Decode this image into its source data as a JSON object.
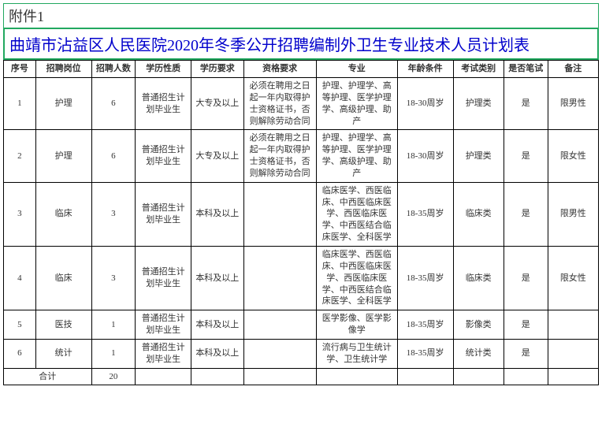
{
  "attachment_label": "附件1",
  "title": "曲靖市沾益区人民医院2020年冬季公开招聘编制外卫生专业技术人员计划表",
  "columns": [
    "序号",
    "招聘岗位",
    "招聘人数",
    "学历性质",
    "学历要求",
    "资格要求",
    "专业",
    "年龄条件",
    "考试类别",
    "是否笔试",
    "备注"
  ],
  "rows": [
    {
      "seq": "1",
      "position": "护理",
      "count": "6",
      "edu_type": "普通招生计划毕业生",
      "edu_req": "大专及以上",
      "qual_req": "必须在聘用之日起一年内取得护士资格证书，否则解除劳动合同",
      "major": "护理、护理学、高等护理、医学护理学、高级护理、助产",
      "age": "18-30周岁",
      "exam_type": "护理类",
      "written": "是",
      "remark": "限男性"
    },
    {
      "seq": "2",
      "position": "护理",
      "count": "6",
      "edu_type": "普通招生计划毕业生",
      "edu_req": "大专及以上",
      "qual_req": "必须在聘用之日起一年内取得护士资格证书，否则解除劳动合同",
      "major": "护理、护理学、高等护理、医学护理学、高级护理、助产",
      "age": "18-30周岁",
      "exam_type": "护理类",
      "written": "是",
      "remark": "限女性"
    },
    {
      "seq": "3",
      "position": "临床",
      "count": "3",
      "edu_type": "普通招生计划毕业生",
      "edu_req": "本科及以上",
      "qual_req": "",
      "major": "临床医学、西医临床、中西医临床医学、西医临床医学、中西医结合临床医学、全科医学",
      "age": "18-35周岁",
      "exam_type": "临床类",
      "written": "是",
      "remark": "限男性"
    },
    {
      "seq": "4",
      "position": "临床",
      "count": "3",
      "edu_type": "普通招生计划毕业生",
      "edu_req": "本科及以上",
      "qual_req": "",
      "major": "临床医学、西医临床、中西医临床医学、西医临床医学、中西医结合临床医学、全科医学",
      "age": "18-35周岁",
      "exam_type": "临床类",
      "written": "是",
      "remark": "限女性"
    },
    {
      "seq": "5",
      "position": "医技",
      "count": "1",
      "edu_type": "普通招生计划毕业生",
      "edu_req": "本科及以上",
      "qual_req": "",
      "major": "医学影像、医学影像学",
      "age": "18-35周岁",
      "exam_type": "影像类",
      "written": "是",
      "remark": ""
    },
    {
      "seq": "6",
      "position": "统计",
      "count": "1",
      "edu_type": "普通招生计划毕业生",
      "edu_req": "本科及以上",
      "qual_req": "",
      "major": "流行病与卫生统计学、卫生统计学",
      "age": "18-35周岁",
      "exam_type": "统计类",
      "written": "是",
      "remark": ""
    }
  ],
  "total_label": "合计",
  "total_count": "20"
}
